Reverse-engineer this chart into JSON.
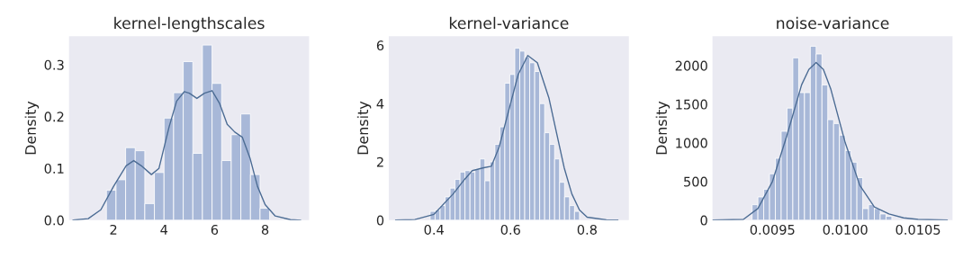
{
  "chart_data": [
    {
      "type": "histogram",
      "title": "kernel-lengthscales",
      "ylabel": "Density",
      "xlim": [
        0.24,
        9.74
      ],
      "ylim": [
        0,
        0.355
      ],
      "xticks": [
        2,
        4,
        6,
        8
      ],
      "yticks": [
        {
          "value": 0,
          "label": "0.0"
        },
        0.1,
        0.2,
        0.3
      ],
      "grid": false,
      "series": [
        {
          "color": "#a8b8d8",
          "bins": [
            1.72,
            2.1,
            2.48,
            2.86,
            3.24,
            3.62,
            4.0,
            4.38,
            4.76,
            5.14,
            5.52,
            5.9,
            6.28,
            6.66,
            7.04,
            7.42,
            7.8,
            8.18
          ],
          "values": [
            0.058,
            0.078,
            0.14,
            0.134,
            0.032,
            0.092,
            0.197,
            0.246,
            0.306,
            0.129,
            0.338,
            0.264,
            0.115,
            0.165,
            0.205,
            0.088,
            0.023
          ]
        },
        {
          "type": "line",
          "color": "#4c6c94",
          "x": [
            0.4,
            1.0,
            1.5,
            2.0,
            2.5,
            2.8,
            3.1,
            3.5,
            3.8,
            4.2,
            4.5,
            4.8,
            5.0,
            5.3,
            5.6,
            5.9,
            6.2,
            6.5,
            6.8,
            7.1,
            7.4,
            7.7,
            8.0,
            8.4,
            9.0,
            9.4
          ],
          "values": [
            0,
            0.003,
            0.02,
            0.065,
            0.105,
            0.115,
            0.105,
            0.088,
            0.1,
            0.18,
            0.23,
            0.248,
            0.245,
            0.235,
            0.245,
            0.25,
            0.225,
            0.185,
            0.17,
            0.16,
            0.12,
            0.065,
            0.03,
            0.008,
            0.001,
            0
          ]
        }
      ]
    },
    {
      "type": "histogram",
      "title": "kernel-variance",
      "ylabel": "Density",
      "xlim": [
        0.282,
        0.909
      ],
      "ylim": [
        0,
        6.31
      ],
      "xticks": [
        0.4,
        0.6,
        0.8
      ],
      "yticks": [
        0,
        2,
        4,
        6
      ],
      "grid": false,
      "series": [
        {
          "color": "#a8b8d8",
          "bins": [
            0.39,
            0.403,
            0.416,
            0.429,
            0.442,
            0.455,
            0.468,
            0.481,
            0.494,
            0.507,
            0.52,
            0.533,
            0.546,
            0.559,
            0.572,
            0.585,
            0.598,
            0.611,
            0.624,
            0.637,
            0.65,
            0.663,
            0.676,
            0.689,
            0.702,
            0.715,
            0.728,
            0.741,
            0.754,
            0.767,
            0.78
          ],
          "values": [
            0.3,
            0.35,
            0.5,
            0.8,
            1.1,
            1.4,
            1.65,
            1.7,
            1.65,
            1.75,
            2.1,
            1.35,
            2.0,
            2.6,
            3.2,
            4.7,
            5.0,
            5.9,
            5.8,
            5.6,
            5.4,
            5.1,
            4.0,
            3.0,
            2.6,
            2.1,
            1.3,
            0.8,
            0.5,
            0.3
          ]
        },
        {
          "type": "line",
          "color": "#4c6c94",
          "x": [
            0.3,
            0.35,
            0.4,
            0.45,
            0.48,
            0.5,
            0.53,
            0.55,
            0.57,
            0.6,
            0.62,
            0.645,
            0.67,
            0.7,
            0.72,
            0.74,
            0.76,
            0.78,
            0.8,
            0.85,
            0.88
          ],
          "values": [
            0,
            0.02,
            0.2,
            0.9,
            1.4,
            1.7,
            1.8,
            1.85,
            2.5,
            4.0,
            5.0,
            5.65,
            5.4,
            4.2,
            3.0,
            1.8,
            0.9,
            0.35,
            0.1,
            0.01,
            0
          ]
        }
      ]
    },
    {
      "type": "histogram",
      "title": "noise-variance",
      "ylabel": "Density",
      "xlim": [
        0.009088,
        0.010737
      ],
      "ylim": [
        0,
        2379
      ],
      "xticks": [
        {
          "value": 0.0095,
          "label": "0.0095"
        },
        {
          "value": 0.01,
          "label": "0.0100"
        },
        {
          "value": 0.0105,
          "label": "0.0105"
        }
      ],
      "yticks": [
        0,
        500,
        1000,
        1500,
        2000
      ],
      "grid": false,
      "series": [
        {
          "color": "#a8b8d8",
          "bins": [
            0.00936,
            0.0094,
            0.00944,
            0.00948,
            0.00952,
            0.00956,
            0.0096,
            0.00964,
            0.00968,
            0.00972,
            0.00976,
            0.0098,
            0.00984,
            0.00988,
            0.00992,
            0.00996,
            0.01,
            0.01004,
            0.01008,
            0.01012,
            0.01016,
            0.0102,
            0.01024,
            0.01028,
            0.01032
          ],
          "values": [
            200,
            300,
            400,
            600,
            800,
            1150,
            1450,
            2100,
            1650,
            1650,
            2250,
            2150,
            1750,
            1300,
            1250,
            1100,
            900,
            750,
            550,
            150,
            200,
            150,
            80,
            50
          ]
        },
        {
          "type": "line",
          "color": "#4c6c94",
          "x": [
            0.00909,
            0.0093,
            0.0094,
            0.0095,
            0.0096,
            0.0097,
            0.00975,
            0.0098,
            0.00985,
            0.0099,
            0.01,
            0.0101,
            0.0102,
            0.0103,
            0.0104,
            0.0105,
            0.0107
          ],
          "values": [
            0,
            10,
            150,
            500,
            1100,
            1750,
            1950,
            2040,
            1950,
            1700,
            1000,
            450,
            170,
            80,
            30,
            10,
            0
          ]
        }
      ]
    }
  ]
}
